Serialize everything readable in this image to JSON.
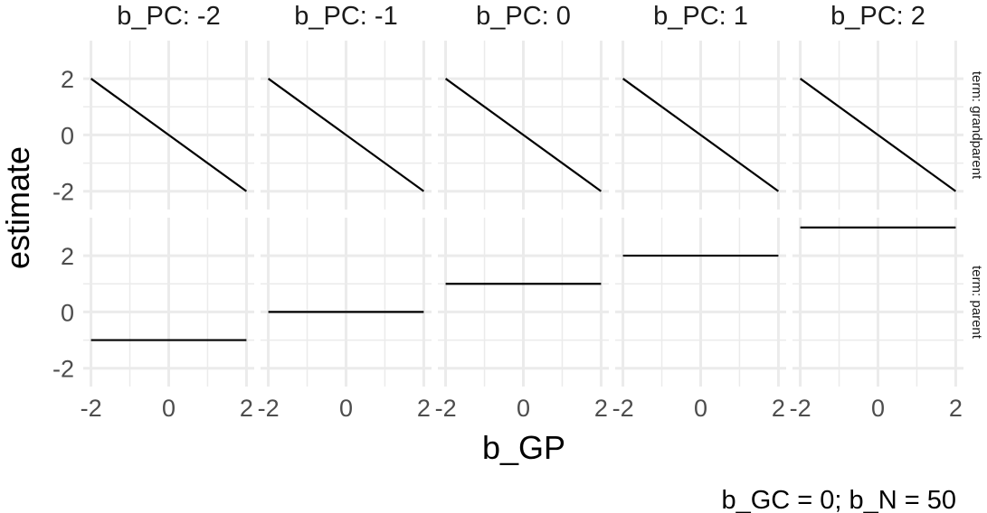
{
  "chart_data": {
    "type": "line",
    "facet_column_labels": [
      "b_PC: -2",
      "b_PC: -1",
      "b_PC: 0",
      "b_PC: 1",
      "b_PC: 2"
    ],
    "facet_row_labels": [
      "term: grandparent",
      "term: parent"
    ],
    "xlabel": "b_GP",
    "ylabel": "estimate",
    "caption": "b_GC = 0; b_N = 50",
    "x_ticks": [
      -2,
      0,
      2
    ],
    "y_ticks": [
      -2,
      0,
      2
    ],
    "xlim": [
      -2,
      2
    ],
    "ylim": [
      -2,
      2.5
    ],
    "grid": true,
    "line_color": "#000000",
    "grid_color": "#ebebeb",
    "x": [
      -2,
      2
    ],
    "panels": [
      {
        "row": 0,
        "col": 0,
        "y": [
          2,
          -2
        ]
      },
      {
        "row": 0,
        "col": 1,
        "y": [
          2,
          -2
        ]
      },
      {
        "row": 0,
        "col": 2,
        "y": [
          2,
          -2
        ]
      },
      {
        "row": 0,
        "col": 3,
        "y": [
          2,
          -2
        ]
      },
      {
        "row": 0,
        "col": 4,
        "y": [
          2,
          -2
        ]
      },
      {
        "row": 1,
        "col": 0,
        "y": [
          -1,
          -1
        ]
      },
      {
        "row": 1,
        "col": 1,
        "y": [
          0,
          0
        ]
      },
      {
        "row": 1,
        "col": 2,
        "y": [
          1,
          1
        ]
      },
      {
        "row": 1,
        "col": 3,
        "y": [
          2,
          2
        ]
      },
      {
        "row": 1,
        "col": 4,
        "y": [
          3,
          3
        ]
      }
    ]
  }
}
